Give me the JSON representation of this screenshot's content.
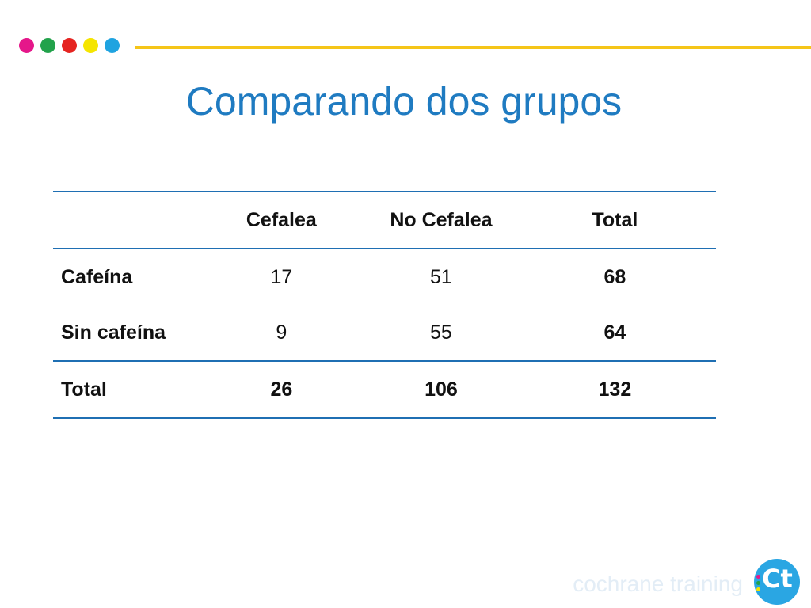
{
  "decor": {
    "dots": [
      "#e5178a",
      "#22a24b",
      "#e52421",
      "#f5e500",
      "#1fa3e0"
    ],
    "line_color": "#f5c518",
    "accent": "#1f7bc1"
  },
  "title": "Comparando dos grupos",
  "table": {
    "headers": [
      "",
      "Cefalea",
      "No Cefalea",
      "Total"
    ],
    "rows": [
      [
        "Cafeína",
        "17",
        "51",
        "68"
      ],
      [
        "Sin cafeína",
        "9",
        "55",
        "64"
      ],
      [
        "Total",
        "26",
        "106",
        "132"
      ]
    ]
  },
  "footer": {
    "brand": "cochrane training",
    "logo_text": "Ct"
  }
}
